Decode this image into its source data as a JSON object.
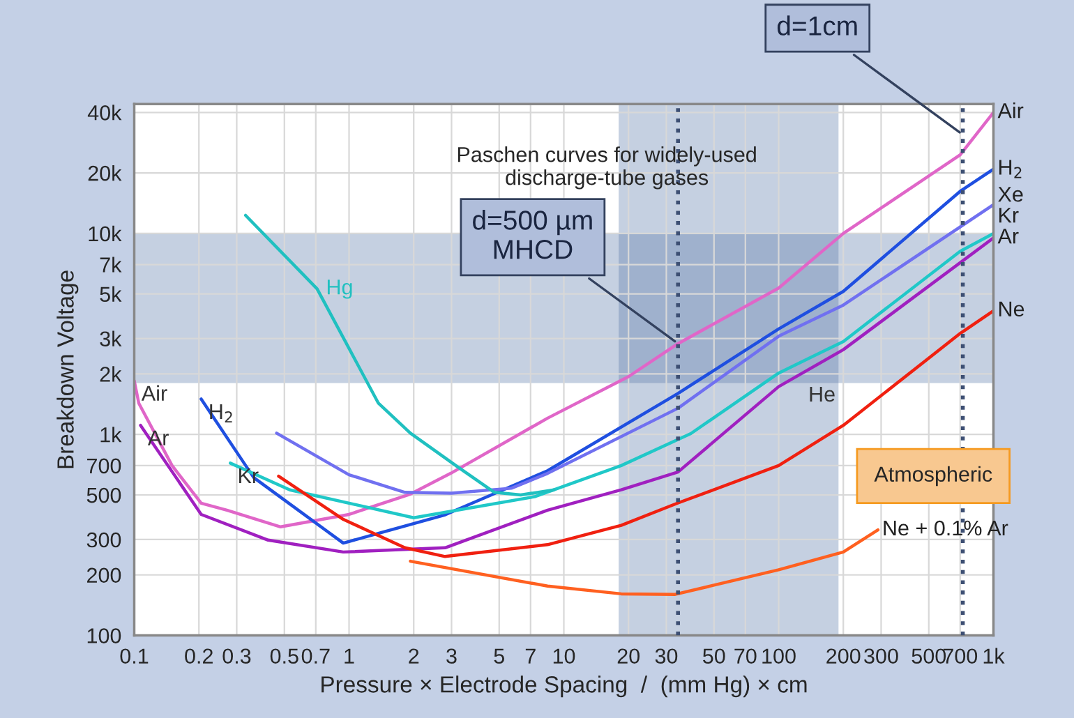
{
  "chart_data": {
    "type": "line",
    "title": "Paschen curves for widely-used\ndischarge-tube gases",
    "xlabel": "Pressure × Electrode Spacing  /  (mm Hg) × cm",
    "ylabel": "Breakdown Voltage",
    "log": "xy",
    "grid": true,
    "legend": false,
    "marker": "none",
    "line_style": "solid",
    "xlim": [
      0.1,
      1000
    ],
    "ylim": [
      100,
      44000
    ],
    "xticks": [
      0.1,
      0.2,
      0.3,
      0.5,
      0.7,
      1,
      2,
      3,
      5,
      7,
      10,
      20,
      30,
      50,
      70,
      100,
      200,
      300,
      500,
      700,
      {
        "value": 1000,
        "label": "1k"
      }
    ],
    "yticks": [
      100,
      200,
      300,
      500,
      700,
      {
        "value": 1000,
        "label": "1k"
      },
      {
        "value": 2000,
        "label": "2k"
      },
      {
        "value": 3000,
        "label": "3k"
      },
      {
        "value": 5000,
        "label": "5k"
      },
      {
        "value": 7000,
        "label": "7k"
      },
      {
        "value": 10000,
        "label": "10k"
      },
      {
        "value": 20000,
        "label": "20k"
      },
      {
        "value": 40000,
        "label": "40k"
      }
    ],
    "series": [
      {
        "name": "Air",
        "color": "#e066c8",
        "x": [
          0.1,
          0.105,
          0.15,
          0.205,
          0.27,
          0.48,
          1,
          1.93,
          2.97,
          8.4,
          20,
          34,
          100,
          200,
          700,
          1000
        ],
        "values": [
          1850,
          1430,
          700,
          455,
          420,
          347,
          400,
          505,
          640,
          1205,
          1940,
          2830,
          5350,
          10000,
          24600,
          40000
        ]
      },
      {
        "name": "H$_{2}$",
        "color": "#1f4fe0",
        "x": [
          0.205,
          0.36,
          0.94,
          2.8,
          8.4,
          34,
          100,
          200,
          700,
          1000
        ],
        "values": [
          1500,
          610,
          288,
          398,
          660,
          1600,
          3350,
          5150,
          16200,
          20900
        ]
      },
      {
        "name": "Xe",
        "color": "#7070f0",
        "x": [
          0.46,
          1,
          1.82,
          3,
          5.7,
          8.4,
          34,
          100,
          200,
          1000
        ],
        "values": [
          1015,
          630,
          515,
          510,
          540,
          640,
          1350,
          3080,
          4400,
          13900
        ]
      },
      {
        "name": "Kr",
        "color": "#20c8c8",
        "x": [
          0.28,
          0.53,
          2,
          7.3,
          18.5,
          39,
          100,
          200,
          700,
          1000
        ],
        "values": [
          720,
          530,
          385,
          490,
          700,
          1010,
          2020,
          2900,
          8150,
          10000
        ]
      },
      {
        "name": "Ar",
        "color": "#a020c0",
        "x": [
          0.107,
          0.205,
          0.42,
          0.94,
          2.8,
          8.4,
          18.5,
          34,
          100,
          200,
          1000
        ],
        "values": [
          1110,
          400,
          298,
          260,
          273,
          420,
          530,
          650,
          1730,
          2640,
          9500
        ]
      },
      {
        "name": "Ne",
        "color": "#f02010",
        "x": [
          0.47,
          0.94,
          1.82,
          2.8,
          8.4,
          18.5,
          34,
          100,
          200,
          700,
          1000
        ],
        "values": [
          620,
          378,
          273,
          247,
          283,
          353,
          456,
          700,
          1110,
          3180,
          4120
        ]
      },
      {
        "name": "Ne + 0.1% Ar",
        "color": "#ff6020",
        "x": [
          1.93,
          8.4,
          18.5,
          33,
          100,
          200,
          290
        ],
        "values": [
          234,
          176,
          161,
          160,
          212,
          260,
          335
        ]
      },
      {
        "name": "Hg",
        "color": "#20c0c0",
        "x": [
          0.33,
          0.71,
          1.37,
          1.93,
          3.2,
          4.75,
          6.3,
          9
        ],
        "values": [
          12300,
          5300,
          1430,
          1015,
          690,
          515,
          500,
          530
        ]
      }
    ],
    "bands": [
      {
        "axis": "y",
        "from": 1800,
        "to": 10000,
        "color": "#5a78a8"
      },
      {
        "axis": "x",
        "from": 18,
        "to": 190,
        "color": "#5a78a8"
      }
    ],
    "ref_lines": [
      {
        "axis": "x",
        "value": 34,
        "color": "#3d4f73",
        "line_style": "dotted"
      },
      {
        "axis": "x",
        "value": 720,
        "color": "#3d4f73",
        "line_style": "dotted"
      }
    ],
    "annotations": [
      {
        "text": "d=500 µm\nMHCD",
        "x": 34,
        "y": 2830
      },
      {
        "text": "d=1cm",
        "x": 720,
        "y": 31000
      },
      "Atmospheric",
      {
        "text": "He",
        "x": 200,
        "y": 1110
      }
    ]
  }
}
